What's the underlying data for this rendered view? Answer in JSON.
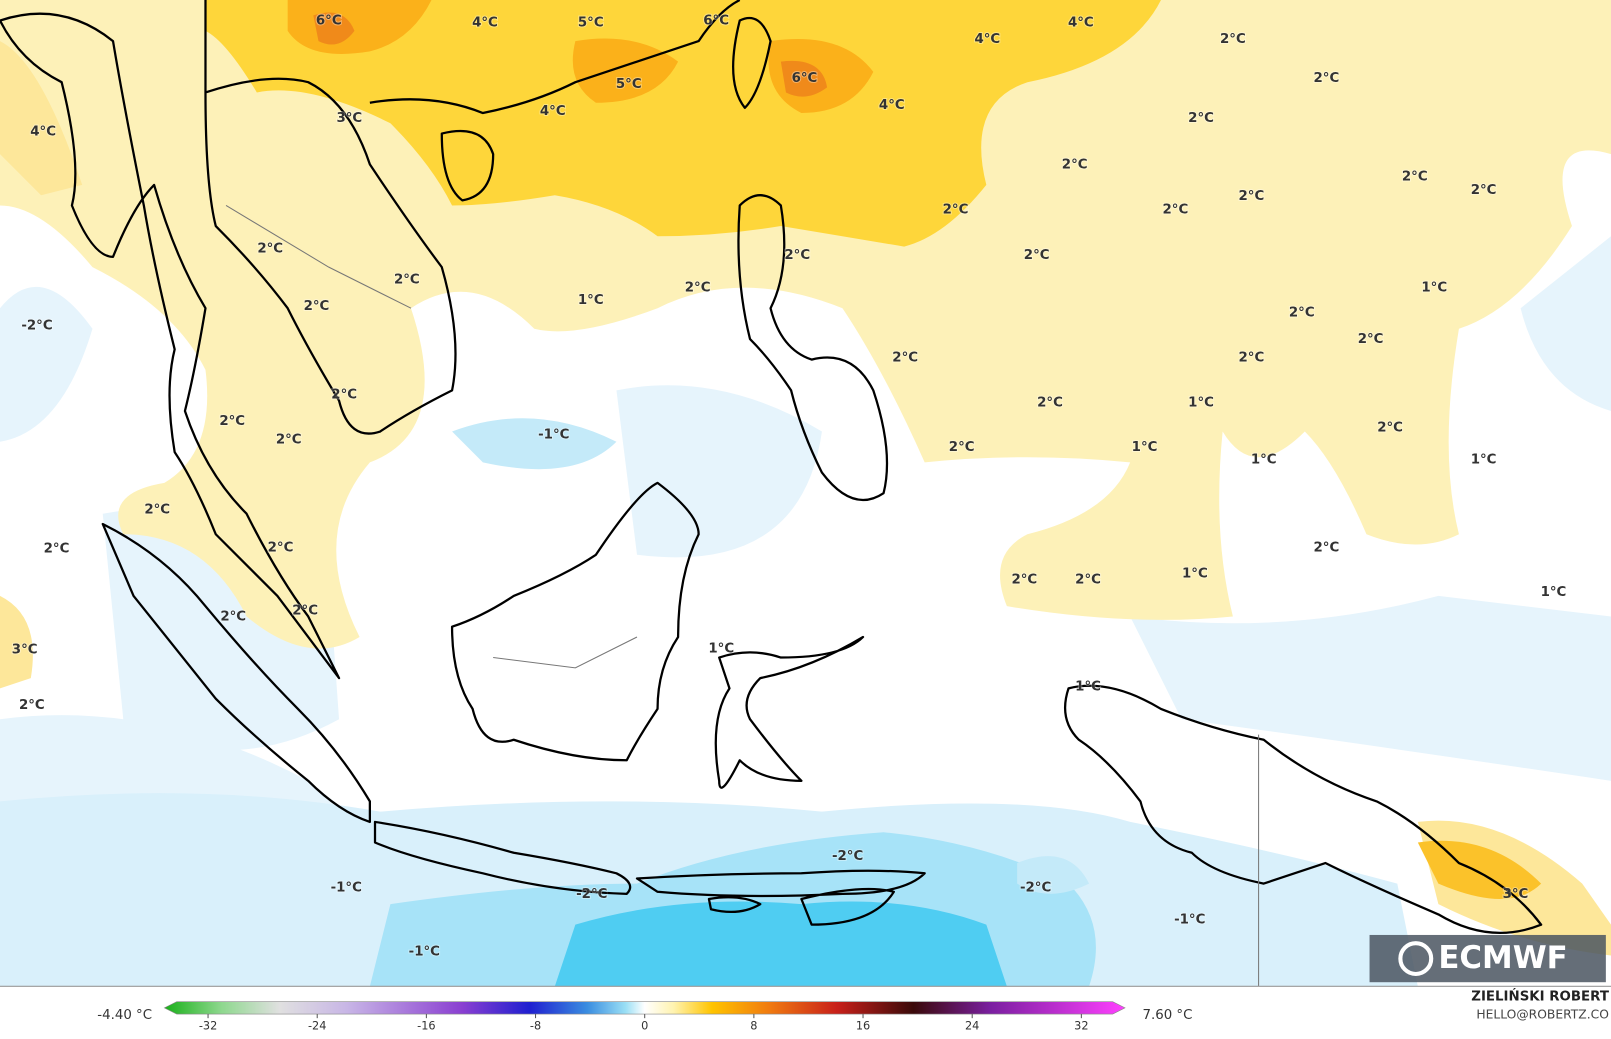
{
  "map": {
    "labels": [
      "6°C",
      "4°C",
      "5°C",
      "6°C",
      "4°C",
      "4°C",
      "2°C",
      "2°C",
      "3°C",
      "5°C",
      "4°C",
      "6°C",
      "4°C",
      "4°C",
      "2°C",
      "2°C",
      "2°C",
      "2°C",
      "2°C",
      "2°C",
      "2°C",
      "2°C",
      "2°C",
      "2°C",
      "2°C",
      "2°C",
      "1°C",
      "1°C",
      "2°C",
      "-2°C",
      "2°C",
      "2°C",
      "2°C",
      "2°C",
      "2°C",
      "1°C",
      "2°C",
      "2°C",
      "2°C",
      "-1°C",
      "2°C",
      "2°C",
      "1°C",
      "1°C",
      "1°C",
      "2°C",
      "2°C",
      "2°C",
      "2°C",
      "1°C",
      "2°C",
      "2°C",
      "1°C",
      "2°C",
      "2°C",
      "3°C",
      "1°C",
      "1°C",
      "2°C",
      "-2°C",
      "-2°C",
      "-1°C",
      "-2°C",
      "3°C",
      "-1°C",
      "-1°C"
    ],
    "logo": "ECMWF"
  },
  "colorbar": {
    "min_label": "-4.40 °C",
    "max_label": "7.60 °C",
    "range": [
      -35.2,
      35.2
    ],
    "ticks": [
      -32,
      -24,
      -16,
      -8,
      0,
      8,
      16,
      24,
      32
    ]
  },
  "credit": {
    "author": "ZIELIŃSKI ROBERT",
    "contact": "HELLO@ROBERTZ.CO"
  }
}
